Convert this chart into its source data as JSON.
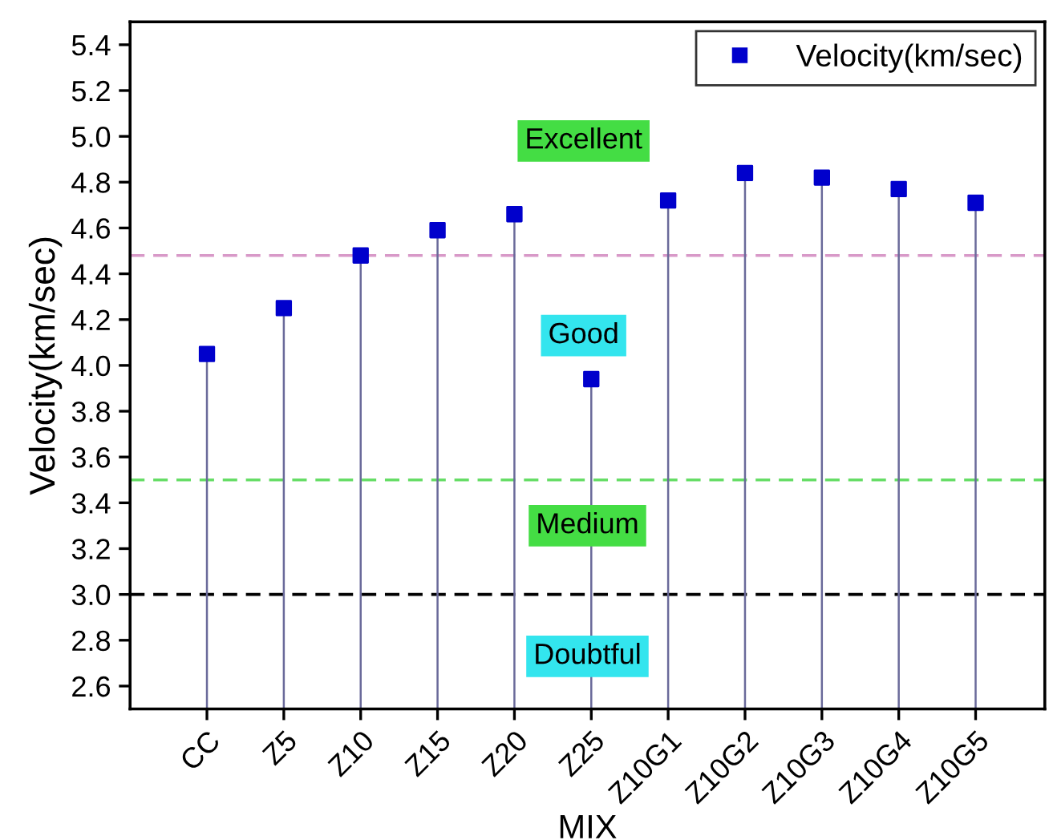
{
  "chart_data": {
    "type": "lollipop",
    "xlabel": "MIX",
    "ylabel": "Velocity(km/sec)",
    "categories": [
      "CC",
      "Z5",
      "Z10",
      "Z15",
      "Z20",
      "Z25",
      "Z10G1",
      "Z10G2",
      "Z10G3",
      "Z10G4",
      "Z10G5"
    ],
    "series": [
      {
        "name": "Velocity(km/sec)",
        "color": "#0000cc",
        "values": [
          4.05,
          4.25,
          4.48,
          4.59,
          4.66,
          3.94,
          4.72,
          4.84,
          4.82,
          4.77,
          4.71
        ]
      }
    ],
    "ylim": [
      2.5,
      5.5
    ],
    "yticks": [
      2.6,
      2.8,
      {
        "value": 3,
        "label": "3.0"
      },
      3.2,
      3.4,
      3.6,
      3.8,
      {
        "value": 4,
        "label": "4.0"
      },
      4.2,
      4.4,
      4.6,
      4.8,
      {
        "value": 5,
        "label": "5.0"
      },
      5.2,
      5.4
    ],
    "ref_lines": [
      {
        "axis": "y",
        "value": 4.48,
        "color": "#d899c8",
        "line_style": "dashed"
      },
      {
        "axis": "y",
        "value": 3.5,
        "color": "#66dd66",
        "line_style": "dashed"
      },
      {
        "axis": "y",
        "value": 3.0,
        "color": "#000000",
        "line_style": "dashed"
      }
    ],
    "annotations": [
      "Excellent",
      "Good",
      "Medium",
      "Doubtful"
    ],
    "marker": "square",
    "legend": "top right",
    "grid": false
  }
}
